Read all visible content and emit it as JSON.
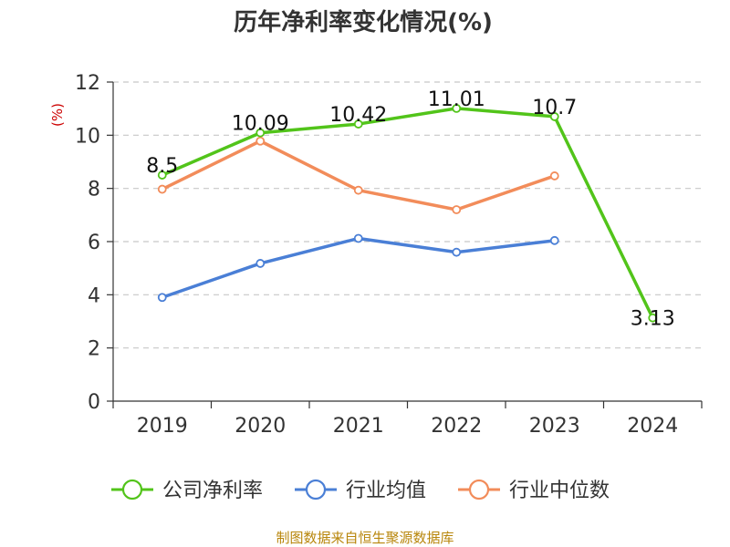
{
  "chart_data": {
    "type": "line",
    "title": "历年净利率变化情况(%)",
    "xlabel": "",
    "ylabel": "(%)",
    "categories": [
      "2019",
      "2020",
      "2021",
      "2022",
      "2023",
      "2024"
    ],
    "ylim": [
      0,
      12
    ],
    "yticks": [
      0,
      2,
      4,
      6,
      8,
      10,
      12
    ],
    "grid": true,
    "legend_position": "bottom",
    "series": [
      {
        "name": "公司净利率",
        "color": "#52c41a",
        "values": [
          8.5,
          10.09,
          10.42,
          11.01,
          10.7,
          3.13
        ],
        "labels": [
          "8.5",
          "10.09",
          "10.42",
          "11.01",
          "10.7",
          "3.13"
        ]
      },
      {
        "name": "行业均值",
        "color": "#4a7fd6",
        "values": [
          3.9,
          5.18,
          6.12,
          5.6,
          6.04,
          null
        ]
      },
      {
        "name": "行业中位数",
        "color": "#f28c5a",
        "values": [
          7.97,
          9.78,
          7.93,
          7.2,
          8.47,
          null
        ]
      }
    ]
  },
  "footer": {
    "source": "制图数据来自恒生聚源数据库"
  }
}
